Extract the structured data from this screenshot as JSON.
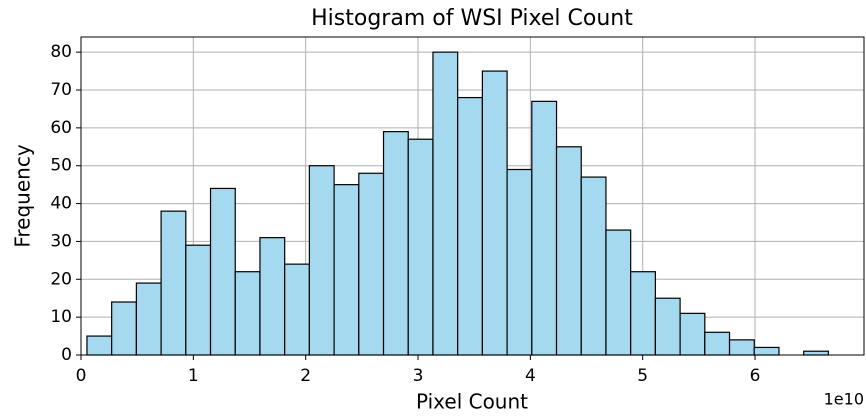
{
  "chart_data": {
    "type": "histogram",
    "title": "Histogram of WSI Pixel Count",
    "x_label": "Pixel Count",
    "y_label": "Frequency",
    "x_offset_label": "1e10",
    "bins": [
      530000000,
      2730000000,
      4930000000,
      7130000000,
      9330000000,
      11530000000,
      13730000000,
      15930000000,
      18130000000,
      20330000000,
      22530000000,
      24730000000,
      26930000000,
      29130000000,
      31330000000,
      33530000000,
      35730000000,
      37930000000,
      40130000000,
      42330000000,
      44530000000,
      46730000000,
      48930000000,
      51130000000,
      53330000000,
      55530000000,
      57730000000,
      59930000000,
      62130000000,
      64330000000,
      66530000000
    ],
    "values": [
      5,
      14,
      19,
      38,
      29,
      44,
      22,
      31,
      24,
      50,
      45,
      48,
      59,
      57,
      80,
      68,
      75,
      49,
      67,
      55,
      47,
      33,
      22,
      15,
      11,
      6,
      4,
      2,
      0,
      1
    ],
    "color": "#a5d9f0",
    "edge_color": "#000000",
    "grid": true,
    "xlim": [
      0,
      69700000000
    ],
    "ylim": [
      0,
      84
    ],
    "xticks": [
      0,
      {
        "value": 10000000000,
        "label": "1"
      },
      {
        "value": 20000000000,
        "label": "2"
      },
      {
        "value": 30000000000,
        "label": "3"
      },
      {
        "value": 40000000000,
        "label": "4"
      },
      {
        "value": 50000000000,
        "label": "5"
      },
      {
        "value": 60000000000,
        "label": "6"
      }
    ],
    "yticks": [
      0,
      10,
      20,
      30,
      40,
      50,
      60,
      70,
      80
    ]
  }
}
